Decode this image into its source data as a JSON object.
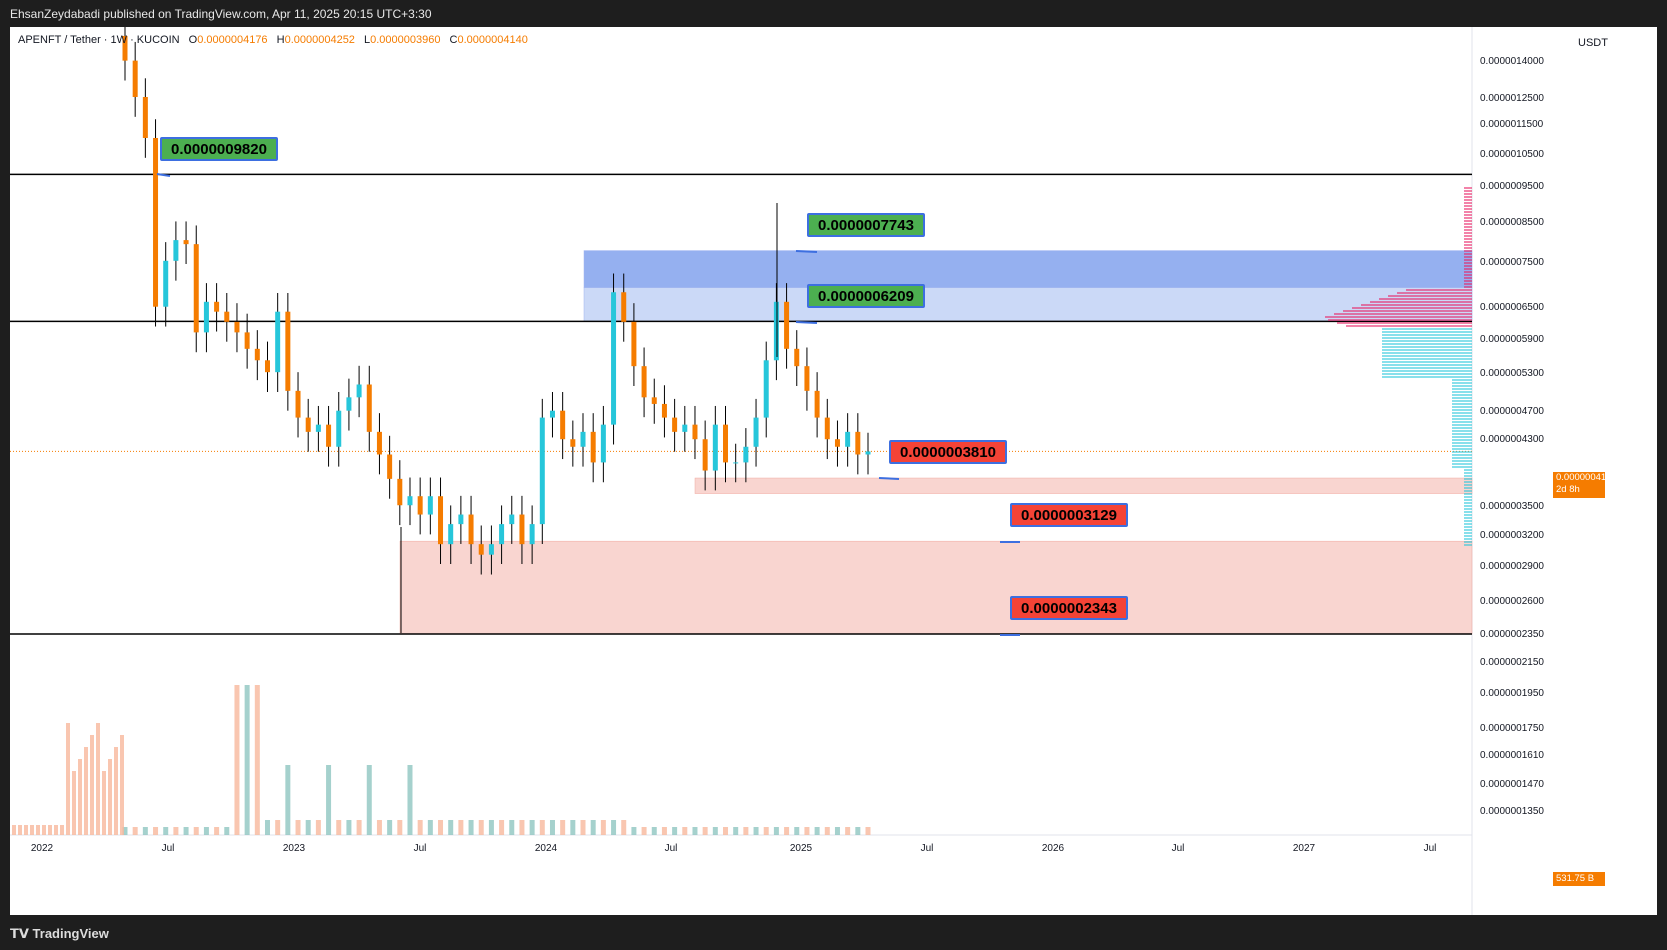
{
  "header": {
    "published": "EhsanZeydabadi published on TradingView.com, Apr 11, 2025 20:15 UTC+3:30"
  },
  "symbol": {
    "name": "APENFT / Tether · 1W · KUCOIN",
    "o_label": "O",
    "o": "0.0000004176",
    "h_label": "H",
    "h": "0.0000004252",
    "l_label": "L",
    "l": "0.0000003960",
    "c_label": "C",
    "c": "0.0000004140"
  },
  "axis": {
    "currency": "USDT",
    "price_ticks": [
      "0.0000014000",
      "0.0000012500",
      "0.0000011500",
      "0.0000010500",
      "0.0000009500",
      "0.0000008500",
      "0.0000007500",
      "0.0000006500",
      "0.0000005900",
      "0.0000005300",
      "0.0000004700",
      "0.0000004300",
      "0.0000003500",
      "0.0000003200",
      "0.0000002900",
      "0.0000002600",
      "0.0000002350",
      "0.0000002150",
      "0.0000001950",
      "0.0000001750",
      "0.0000001610",
      "0.0000001470",
      "0.0000001350"
    ],
    "time_ticks": [
      "2022",
      "Jul",
      "2023",
      "Jul",
      "2024",
      "Jul",
      "2025",
      "Jul",
      "2026",
      "Jul",
      "2027",
      "Jul"
    ]
  },
  "current_price": {
    "value": "0.0000004140",
    "countdown": "2d 8h",
    "volume": "531.75 B"
  },
  "chart_data": {
    "type": "candlestick",
    "timeframe": "1W",
    "y_scale": "log",
    "ylim": [
      1.26e-07,
      1.6e-06
    ],
    "levels": [
      {
        "label": "0.0000009820",
        "value": 9.82e-07,
        "color": "#4caf50"
      },
      {
        "label": "0.0000007743",
        "value": 7.743e-07,
        "color": "#4caf50"
      },
      {
        "label": "0.0000006209",
        "value": 6.209e-07,
        "color": "#4caf50"
      },
      {
        "label": "0.0000003810",
        "value": 3.81e-07,
        "color": "#f44336"
      },
      {
        "label": "0.0000003129",
        "value": 3.129e-07,
        "color": "#f44336"
      },
      {
        "label": "0.0000002343",
        "value": 2.343e-07,
        "color": "#f44336"
      }
    ],
    "zones": [
      {
        "from": 6.9e-07,
        "to": 7.743e-07,
        "color": "#4f7be6"
      },
      {
        "from": 6.209e-07,
        "to": 6.9e-07,
        "color": "#a9bff2"
      },
      {
        "from": 3.63e-07,
        "to": 3.81e-07,
        "color": "#f7c3bc"
      },
      {
        "from": 2.343e-07,
        "to": 3.129e-07,
        "color": "#f7c3bc"
      }
    ],
    "candle_closes": [
      1.4e-06,
      1.25e-06,
      1.1e-06,
      6.5e-07,
      7.5e-07,
      8e-07,
      7.9e-07,
      6e-07,
      6.6e-07,
      6.4e-07,
      6.2e-07,
      6e-07,
      5.7e-07,
      5.5e-07,
      5.3e-07,
      6.4e-07,
      5e-07,
      4.6e-07,
      4.4e-07,
      4.5e-07,
      4.2e-07,
      4.7e-07,
      4.9e-07,
      5.1e-07,
      4.4e-07,
      4.1e-07,
      3.8e-07,
      3.5e-07,
      3.6e-07,
      3.4e-07,
      3.6e-07,
      3.1e-07,
      3.3e-07,
      3.4e-07,
      3.1e-07,
      3e-07,
      3.1e-07,
      3.3e-07,
      3.4e-07,
      3.1e-07,
      3.3e-07,
      4.6e-07,
      4.7e-07,
      4.3e-07,
      4.2e-07,
      4.4e-07,
      4e-07,
      4.5e-07,
      6.8e-07,
      6.2e-07,
      5.4e-07,
      4.9e-07,
      4.8e-07,
      4.6e-07,
      4.4e-07,
      4.5e-07,
      4.3e-07,
      3.9e-07,
      4.5e-07,
      4e-07,
      4e-07,
      4.2e-07,
      4.6e-07,
      5.5e-07,
      6.6e-07,
      5.7e-07,
      5.4e-07,
      5e-07,
      4.6e-07,
      4.3e-07,
      4.2e-07,
      4.4e-07,
      4.1e-07,
      4.14e-07
    ]
  }
}
